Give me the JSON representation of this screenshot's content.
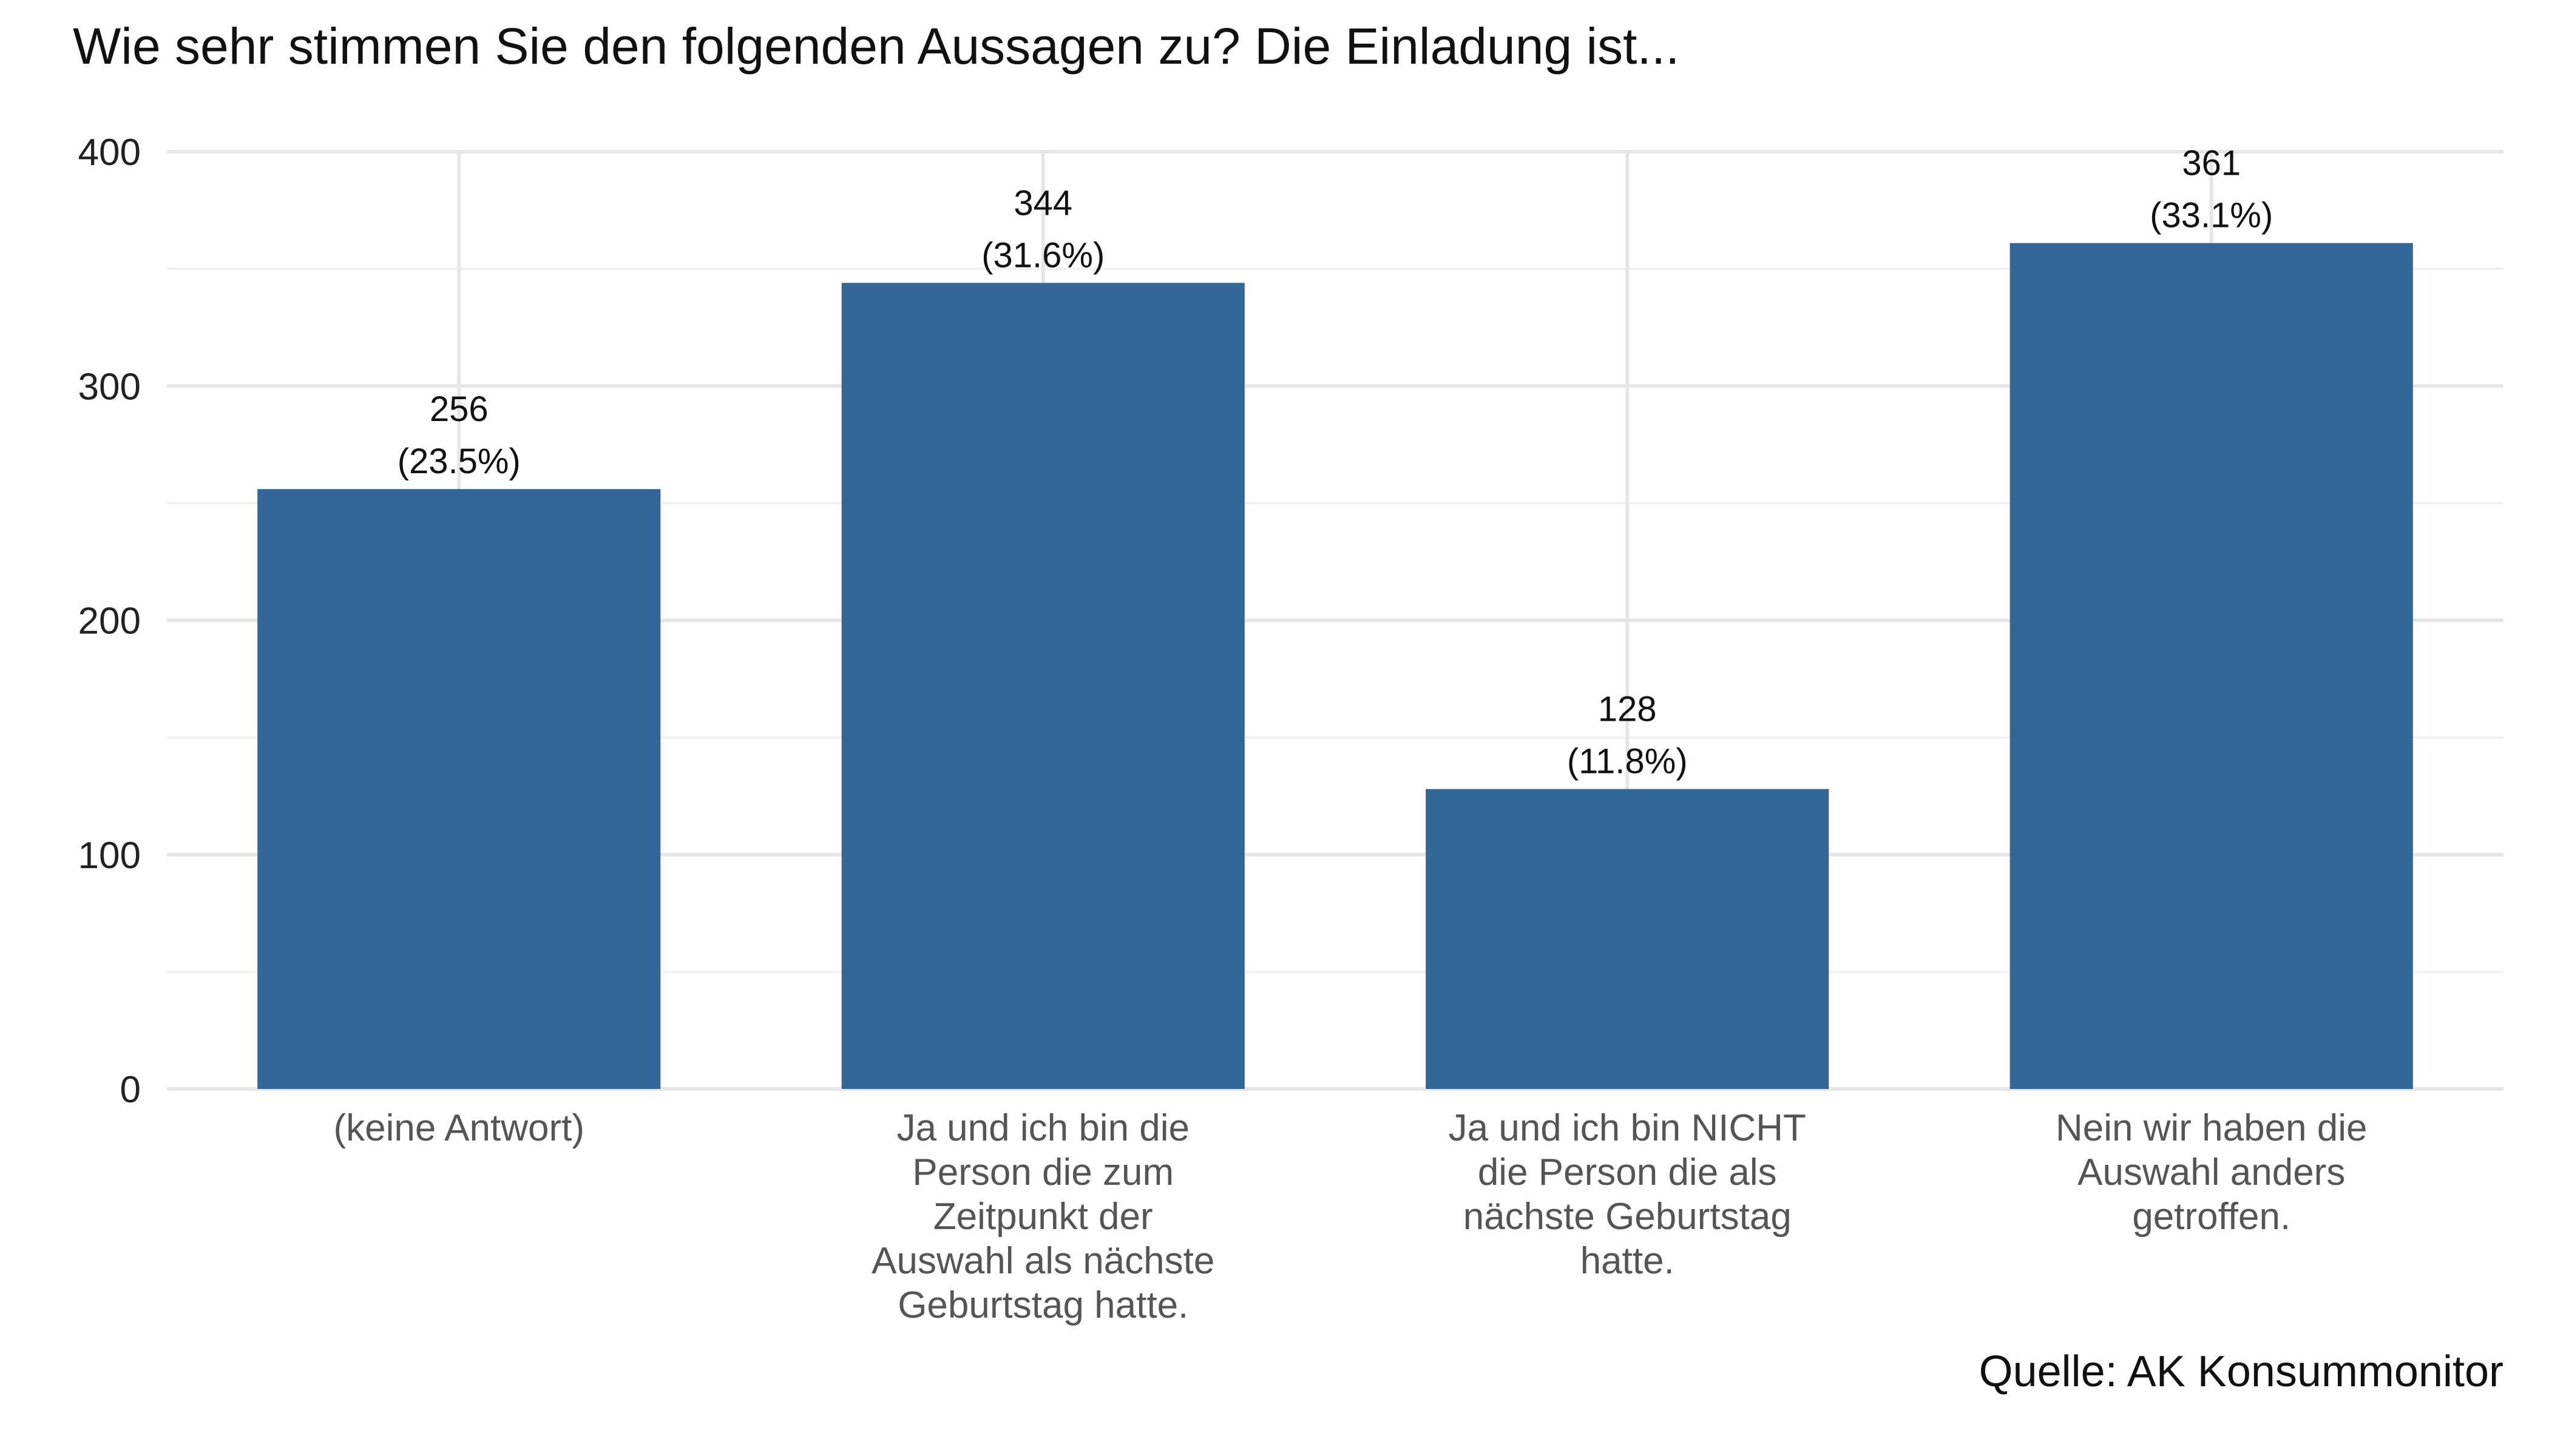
{
  "chart_data": {
    "type": "bar",
    "title": "Wie sehr stimmen Sie den folgenden Aussagen zu? Die Einladung ist...",
    "categories": [
      [
        "(keine Antwort)"
      ],
      [
        "Ja und ich bin die",
        "Person die zum",
        "Zeitpunkt der",
        "Auswahl als nächste",
        "Geburtstag hatte."
      ],
      [
        "Ja und ich bin NICHT",
        "die Person die als",
        "nächste Geburtstag",
        "hatte."
      ],
      [
        "Nein wir haben die",
        "Auswahl anders",
        "getroffen."
      ]
    ],
    "values": [
      256,
      344,
      128,
      361
    ],
    "labels": [
      "256",
      "344",
      "128",
      "361"
    ],
    "percent_labels": [
      "(23.5%)",
      "(31.6%)",
      "(11.8%)",
      "(33.1%)"
    ],
    "ylim": [
      0,
      400
    ],
    "yticks": [
      0,
      100,
      200,
      300,
      400
    ],
    "ytick_labels": [
      "0",
      "100",
      "200",
      "300",
      "400"
    ],
    "xlabel": "",
    "ylabel": "",
    "grid": true,
    "legend": "none",
    "caption": "Quelle: AK Konsummonitor",
    "bar_color": "#336699"
  }
}
